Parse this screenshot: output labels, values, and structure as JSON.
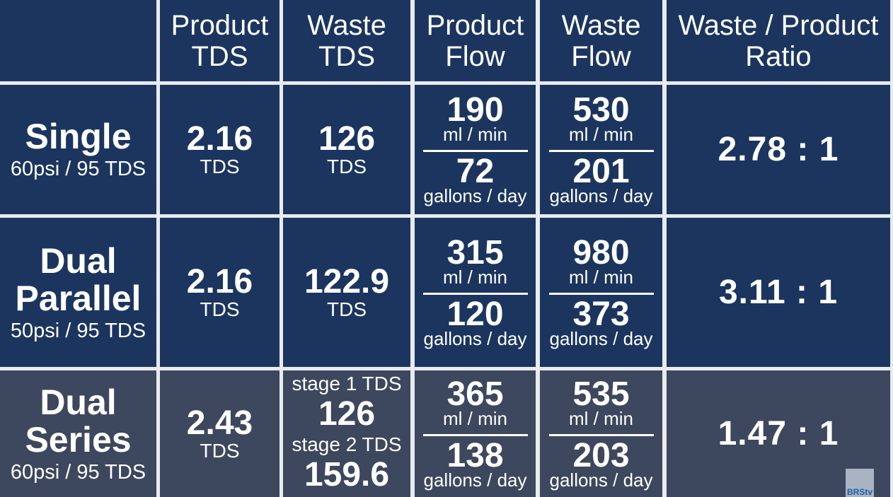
{
  "headers": {
    "product_tds": [
      "Product",
      "TDS"
    ],
    "waste_tds": [
      "Waste",
      "TDS"
    ],
    "product_flow": [
      "Product",
      "Flow"
    ],
    "waste_flow": [
      "Waste",
      "Flow"
    ],
    "ratio": [
      "Waste / Product",
      "Ratio"
    ]
  },
  "rows": [
    {
      "name": [
        "Single"
      ],
      "sub": "60psi / 95 TDS",
      "product_tds": {
        "value": "2.16",
        "unit": "TDS"
      },
      "waste_tds": {
        "value": "126",
        "unit": "TDS"
      },
      "product_flow": {
        "ml": "190",
        "ml_unit": "ml / min",
        "gpd": "72",
        "gpd_unit": "gallons / day"
      },
      "waste_flow": {
        "ml": "530",
        "ml_unit": "ml / min",
        "gpd": "201",
        "gpd_unit": "gallons / day"
      },
      "ratio": "2.78 : 1"
    },
    {
      "name": [
        "Dual",
        "Parallel"
      ],
      "sub": "50psi / 95 TDS",
      "product_tds": {
        "value": "2.16",
        "unit": "TDS"
      },
      "waste_tds": {
        "value": "122.9",
        "unit": "TDS"
      },
      "product_flow": {
        "ml": "315",
        "ml_unit": "ml / min",
        "gpd": "120",
        "gpd_unit": "gallons / day"
      },
      "waste_flow": {
        "ml": "980",
        "ml_unit": "ml / min",
        "gpd": "373",
        "gpd_unit": "gallons / day"
      },
      "ratio": "3.11 : 1"
    },
    {
      "name": [
        "Dual",
        "Series"
      ],
      "sub": "60psi / 95 TDS",
      "product_tds": {
        "value": "2.43",
        "unit": "TDS"
      },
      "waste_tds": {
        "stage1_label": "stage 1 TDS",
        "stage1_value": "126",
        "stage2_label": "stage 2 TDS",
        "stage2_value": "159.6"
      },
      "product_flow": {
        "ml": "365",
        "ml_unit": "ml / min",
        "gpd": "138",
        "gpd_unit": "gallons / day"
      },
      "waste_flow": {
        "ml": "535",
        "ml_unit": "ml / min",
        "gpd": "203",
        "gpd_unit": "gallons / day"
      },
      "ratio": "1.47 : 1"
    }
  ],
  "logo": {
    "text": "BRStv",
    "icon": "brstv-logo-icon"
  },
  "colors": {
    "row_bg": "#1b355f",
    "series_bg": "#3d475d",
    "divider": "#e8ebef"
  }
}
